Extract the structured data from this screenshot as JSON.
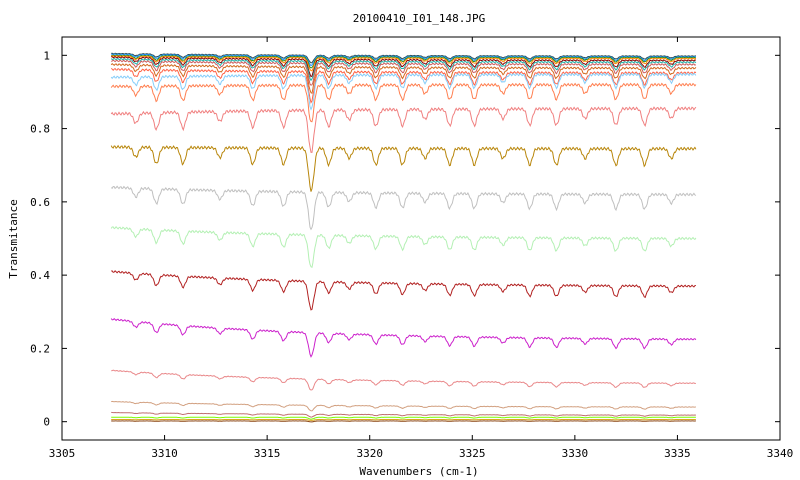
{
  "chart_data": {
    "type": "line",
    "title": "20100410_I01_148.JPG",
    "xlabel": "Wavenumbers (cm-1)",
    "ylabel": "Transmitance",
    "xlim": [
      3305,
      3340
    ],
    "ylim": [
      -0.05,
      1.05
    ],
    "x_ticks": [
      3305,
      3310,
      3315,
      3320,
      3325,
      3330,
      3335,
      3340
    ],
    "y_ticks": [
      0,
      0.2,
      0.4,
      0.6,
      0.8,
      1
    ],
    "x_range": [
      3307.4,
      3335.9
    ],
    "grid": false,
    "legend": "none",
    "absorption_lines": [
      3308.6,
      3309.6,
      3310.9,
      3312.7,
      3314.3,
      3315.8,
      3317.1,
      3317.2,
      3318.0,
      3319.0,
      3320.3,
      3321.6,
      3322.7,
      3323.9,
      3325.1,
      3326.5,
      3327.8,
      3329.1,
      3330.5,
      3332.0,
      3333.4,
      3334.7
    ],
    "series": [
      {
        "color": "#2f4f4f",
        "start": 1.005,
        "end": 0.998,
        "depth": 0.008
      },
      {
        "color": "#1e90ff",
        "start": 1.003,
        "end": 0.996,
        "depth": 0.01
      },
      {
        "color": "#228b22",
        "start": 1.0,
        "end": 0.994,
        "depth": 0.012
      },
      {
        "color": "#ff8c00",
        "start": 0.998,
        "end": 0.991,
        "depth": 0.014
      },
      {
        "color": "#8b0000",
        "start": 0.995,
        "end": 0.986,
        "depth": 0.018
      },
      {
        "color": "#20b2aa",
        "start": 0.99,
        "end": 0.981,
        "depth": 0.02
      },
      {
        "color": "#cd5c5c",
        "start": 0.985,
        "end": 0.975,
        "depth": 0.024
      },
      {
        "color": "#d2691e",
        "start": 0.975,
        "end": 0.965,
        "depth": 0.028
      },
      {
        "color": "#ff6347",
        "start": 0.962,
        "end": 0.952,
        "depth": 0.032
      },
      {
        "color": "#87cefa",
        "start": 0.94,
        "end": 0.948,
        "depth": 0.036
      },
      {
        "color": "#ff7f50",
        "start": 0.915,
        "end": 0.92,
        "depth": 0.04
      },
      {
        "color": "#f08080",
        "start": 0.84,
        "end": 0.855,
        "depth": 0.045
      },
      {
        "color": "#b8860b",
        "start": 0.75,
        "end": 0.745,
        "depth": 0.045
      },
      {
        "color": "#c0c0c0",
        "start": 0.64,
        "end": 0.62,
        "depth": 0.04
      },
      {
        "color": "#b4f0b4",
        "start": 0.53,
        "end": 0.5,
        "depth": 0.035
      },
      {
        "color": "#b22222",
        "start": 0.41,
        "end": 0.37,
        "depth": 0.03
      },
      {
        "color": "#cc22cc",
        "start": 0.28,
        "end": 0.225,
        "depth": 0.025
      },
      {
        "color": "#e9888a",
        "start": 0.14,
        "end": 0.105,
        "depth": 0.012
      },
      {
        "color": "#d2a080",
        "start": 0.055,
        "end": 0.04,
        "depth": 0.006
      },
      {
        "color": "#c07070",
        "start": 0.025,
        "end": 0.018,
        "depth": 0.003
      },
      {
        "color": "#7cfc00",
        "start": 0.012,
        "end": 0.012,
        "depth": 0.002
      },
      {
        "color": "#daa520",
        "start": 0.006,
        "end": 0.006,
        "depth": 0.001
      },
      {
        "color": "#8b4513",
        "start": 0.002,
        "end": 0.002,
        "depth": 0.001
      }
    ]
  }
}
